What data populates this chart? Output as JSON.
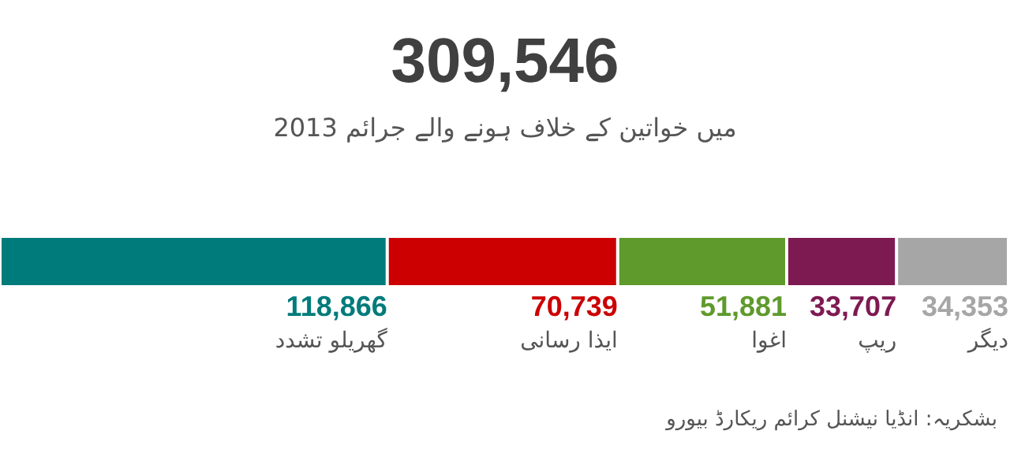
{
  "chart_data": {
    "type": "bar",
    "orientation": "horizontal",
    "stacked": true,
    "title": "309,546",
    "subtitle": "2013 میں خواتین کے خلاف ہونے والے جرائم",
    "categories": [
      null
    ],
    "legend": false,
    "tick_labels": false,
    "series": [
      {
        "name": "گھریلو تشدد",
        "color": "#007b7b",
        "values": [
          118866
        ],
        "value_labels": [
          "118,866"
        ]
      },
      {
        "name": "ایذا رسانی",
        "color": "#cc0000",
        "values": [
          70739
        ],
        "value_labels": [
          "70,739"
        ]
      },
      {
        "name": "اغوا",
        "color": "#5f9a2c",
        "values": [
          51881
        ],
        "value_labels": [
          "51,881"
        ]
      },
      {
        "name": "ریپ",
        "color": "#7e1a52",
        "values": [
          33707
        ],
        "value_labels": [
          "33,707"
        ]
      },
      {
        "name": "دیگر",
        "color": "#a6a6a6",
        "values": [
          34353
        ],
        "value_labels": [
          "34,353"
        ]
      }
    ],
    "annotations": [
      "بشکریہ: انڈیا نیشنل کرائم ریکارڈ بیورو"
    ]
  }
}
